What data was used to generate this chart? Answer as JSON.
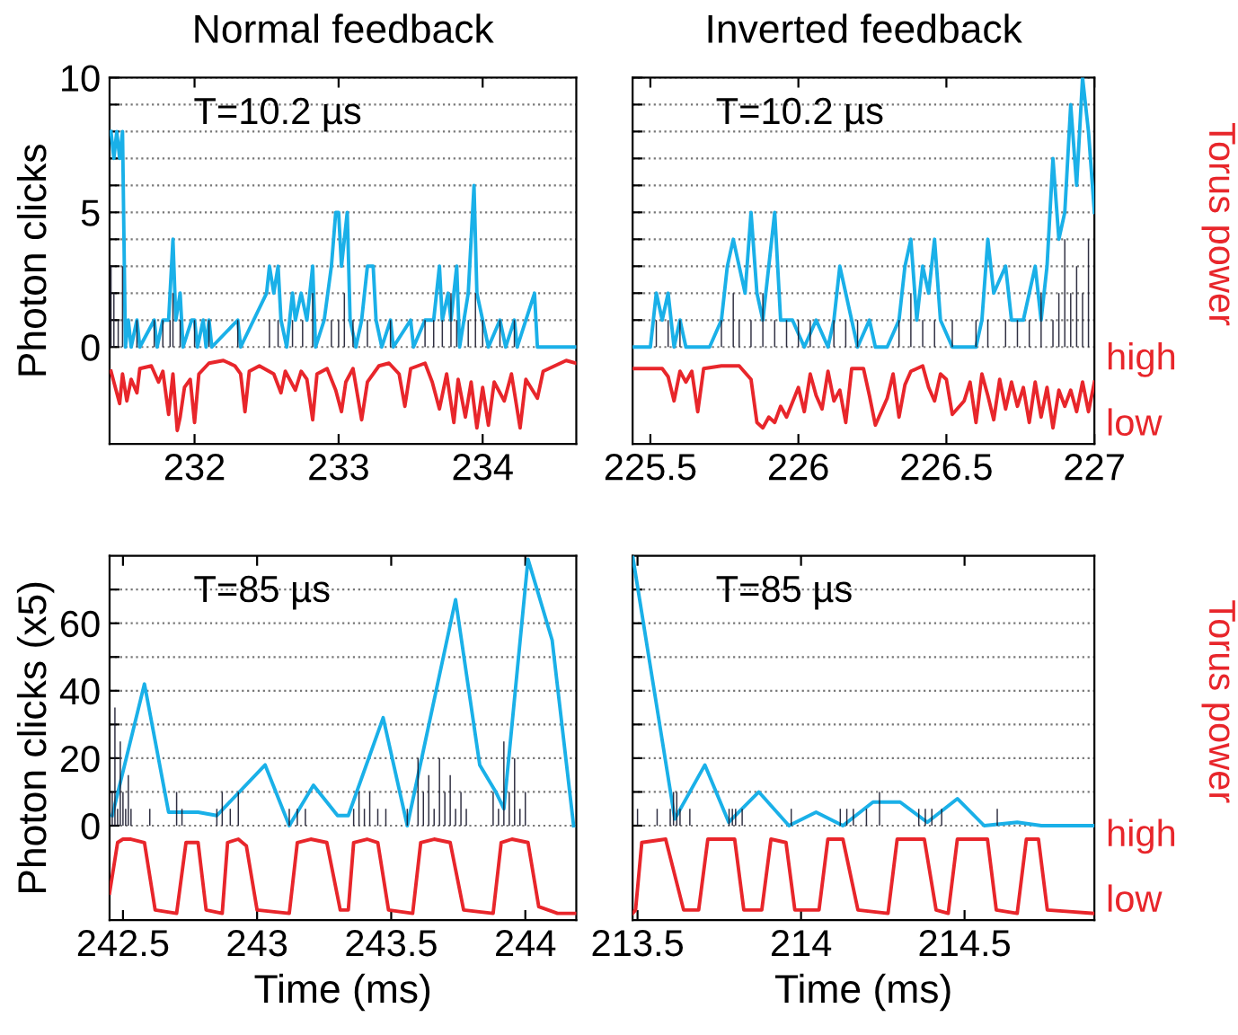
{
  "chart_data": [
    {
      "type": "line",
      "title": "Normal feedback",
      "ylabel": "Photon clicks",
      "annotations": [
        "T=10.2 µs"
      ],
      "xlim": [
        231.41,
        234.65
      ],
      "ylim": [
        -3.6,
        10
      ],
      "xticks": [
        232,
        233,
        234
      ],
      "yticks": [
        0,
        {
          "value": 1,
          "label": null
        },
        {
          "value": 2,
          "label": null
        },
        {
          "value": 3,
          "label": null
        },
        {
          "value": 4,
          "label": null
        },
        5,
        {
          "value": 6,
          "label": null
        },
        {
          "value": 7,
          "label": null
        },
        {
          "value": 8,
          "label": null
        },
        {
          "value": 9,
          "label": null
        },
        10
      ],
      "grid": "y",
      "series": [
        {
          "type": "bar",
          "color": "#1a1a2e",
          "x": [
            231.42,
            231.44,
            231.47,
            231.5,
            231.6,
            231.72,
            231.78,
            231.83,
            231.85,
            231.9,
            232.0,
            232.1,
            232.3,
            232.52,
            232.58,
            232.68,
            232.75,
            232.82,
            232.95,
            233.0,
            233.04,
            233.1,
            233.2,
            233.36,
            233.6,
            233.66,
            233.72,
            233.78,
            233.82,
            233.9,
            233.95,
            234.0,
            234.12,
            234.22
          ],
          "values": [
            3,
            2,
            1,
            3,
            1,
            1,
            1,
            1,
            2,
            1,
            1,
            1,
            1,
            1,
            1,
            1,
            1,
            2,
            1,
            1,
            2,
            1,
            1,
            1,
            1,
            1,
            1,
            2,
            1,
            1,
            2,
            1,
            1,
            1
          ]
        },
        {
          "type": "line",
          "color": "#1ab0e8",
          "x": [
            231.42,
            231.44,
            231.46,
            231.48,
            231.5,
            231.52,
            231.54,
            231.56,
            231.6,
            231.62,
            231.72,
            231.74,
            231.78,
            231.82,
            231.85,
            231.87,
            231.9,
            231.92,
            231.98,
            232.0,
            232.02,
            232.06,
            232.08,
            232.1,
            232.12,
            232.3,
            232.32,
            232.5,
            232.52,
            232.55,
            232.58,
            232.6,
            232.64,
            232.68,
            232.7,
            232.74,
            232.78,
            232.82,
            232.84,
            232.9,
            232.95,
            232.98,
            233.0,
            233.02,
            233.06,
            233.08,
            233.12,
            233.16,
            233.2,
            233.24,
            233.26,
            233.3,
            233.36,
            233.38,
            233.5,
            233.52,
            233.6,
            233.66,
            233.7,
            233.72,
            233.76,
            233.78,
            233.82,
            233.84,
            233.9,
            233.94,
            233.96,
            234.0,
            234.04,
            234.12,
            234.16,
            234.22,
            234.24,
            234.36,
            234.38,
            234.65
          ],
          "values": [
            8,
            7,
            8,
            7,
            8,
            0,
            1,
            0,
            1,
            0,
            1,
            0,
            1,
            1,
            4,
            1,
            2,
            0,
            1,
            1,
            0,
            1,
            0,
            1,
            0,
            1,
            0,
            2,
            3,
            2,
            3,
            1,
            0,
            2,
            1,
            2,
            1,
            3,
            0,
            1,
            3,
            5,
            5,
            3,
            5,
            1,
            0,
            1,
            3,
            3,
            1,
            0,
            1,
            0,
            1,
            0,
            1,
            1,
            3,
            1,
            2,
            1,
            3,
            0,
            2,
            6,
            2,
            1,
            0,
            1,
            0,
            1,
            0,
            2,
            0,
            0
          ]
        },
        {
          "type": "line",
          "color": "#e8262b",
          "x": [
            231.42,
            231.45,
            231.48,
            231.5,
            231.53,
            231.56,
            231.6,
            231.62,
            231.7,
            231.75,
            231.78,
            231.82,
            231.85,
            231.88,
            231.9,
            231.93,
            231.97,
            232.0,
            232.03,
            232.1,
            232.2,
            232.28,
            232.32,
            232.35,
            232.38,
            232.45,
            232.55,
            232.6,
            232.63,
            232.7,
            232.74,
            232.78,
            232.82,
            232.85,
            232.92,
            232.98,
            233.02,
            233.05,
            233.1,
            233.16,
            233.2,
            233.28,
            233.35,
            233.42,
            233.46,
            233.5,
            233.6,
            233.65,
            233.7,
            233.75,
            233.8,
            233.83,
            233.88,
            233.92,
            233.96,
            234.0,
            234.04,
            234.08,
            234.15,
            234.2,
            234.26,
            234.3,
            234.38,
            234.42,
            234.5,
            234.58,
            234.65
          ],
          "values": [
            -0.9,
            -1.5,
            -2.1,
            -1.0,
            -2.0,
            -1.2,
            -1.7,
            -0.8,
            -0.7,
            -1.3,
            -0.9,
            -2.5,
            -1.0,
            -3.1,
            -2.6,
            -1.5,
            -1.2,
            -2.8,
            -1.0,
            -0.6,
            -0.5,
            -0.7,
            -1.0,
            -2.4,
            -0.9,
            -0.7,
            -1.0,
            -1.7,
            -0.9,
            -1.6,
            -0.9,
            -1.2,
            -2.7,
            -1.0,
            -0.8,
            -1.6,
            -2.4,
            -1.3,
            -0.8,
            -2.7,
            -1.3,
            -0.7,
            -0.6,
            -1.0,
            -2.2,
            -0.8,
            -0.6,
            -1.3,
            -2.3,
            -1.0,
            -2.8,
            -1.2,
            -2.6,
            -1.3,
            -3.0,
            -1.5,
            -2.9,
            -1.3,
            -2.0,
            -1.0,
            -3.0,
            -1.2,
            -1.9,
            -0.9,
            -0.7,
            -0.5,
            -0.6
          ]
        }
      ]
    },
    {
      "type": "line",
      "title": "Inverted feedback",
      "y2label": "Torus power",
      "annotations": [
        "T=10.2 µs",
        "high",
        "low"
      ],
      "xlim": [
        225.44,
        227.0
      ],
      "ylim": [
        -3.6,
        10
      ],
      "xticks": [
        225.5,
        226,
        226.5,
        227
      ],
      "yticks": [
        0,
        {
          "value": 1,
          "label": null
        },
        {
          "value": 2,
          "label": null
        },
        {
          "value": 3,
          "label": null
        },
        {
          "value": 4,
          "label": null
        },
        5,
        {
          "value": 6,
          "label": null
        },
        {
          "value": 7,
          "label": null
        },
        {
          "value": 8,
          "label": null
        },
        {
          "value": 9,
          "label": null
        },
        10
      ],
      "grid": "y",
      "tick_labels": "x",
      "series": [
        {
          "type": "bar",
          "color": "#1a1a2e",
          "x": [
            225.52,
            225.56,
            225.6,
            225.74,
            225.78,
            225.8,
            225.84,
            225.88,
            225.92,
            225.96,
            226.0,
            226.04,
            226.12,
            226.16,
            226.2,
            226.34,
            226.38,
            226.42,
            226.46,
            226.52,
            226.6,
            226.64,
            226.7,
            226.74,
            226.78,
            226.82,
            226.86,
            226.88,
            226.9,
            226.92,
            226.94,
            226.96,
            226.98
          ],
          "values": [
            1,
            1,
            1,
            1,
            2,
            1,
            1,
            2,
            1,
            1,
            1,
            1,
            1,
            1,
            1,
            1,
            2,
            1,
            1,
            1,
            1,
            1,
            1,
            1,
            1,
            2,
            1,
            2,
            4,
            2,
            3,
            2,
            4
          ]
        },
        {
          "type": "line",
          "color": "#1ab0e8",
          "x": [
            225.44,
            225.5,
            225.52,
            225.54,
            225.56,
            225.58,
            225.6,
            225.62,
            225.7,
            225.74,
            225.76,
            225.78,
            225.8,
            225.82,
            225.84,
            225.86,
            225.88,
            225.9,
            225.92,
            225.94,
            225.98,
            226.02,
            226.06,
            226.1,
            226.12,
            226.14,
            226.16,
            226.18,
            226.2,
            226.24,
            226.26,
            226.3,
            226.34,
            226.36,
            226.38,
            226.4,
            226.42,
            226.44,
            226.46,
            226.48,
            226.52,
            226.6,
            226.62,
            226.64,
            226.66,
            226.7,
            226.72,
            226.76,
            226.8,
            226.82,
            226.84,
            226.86,
            226.88,
            226.9,
            226.92,
            226.94,
            226.96,
            226.98,
            227.0
          ],
          "values": [
            0,
            0,
            2,
            1,
            2,
            0,
            1,
            0,
            0,
            1,
            3,
            4,
            3,
            2,
            5,
            2,
            1,
            3,
            5,
            1,
            1,
            0,
            1,
            0,
            1,
            3,
            2,
            1,
            0,
            1,
            0,
            0,
            1,
            3,
            4,
            1,
            3,
            2,
            4,
            1,
            0,
            0,
            1,
            4,
            2,
            3,
            1,
            1,
            3,
            1,
            3,
            7,
            4,
            5,
            9,
            6,
            10,
            8,
            5
          ]
        },
        {
          "color": "#e8262b",
          "x": [
            225.44,
            225.5,
            225.54,
            225.56,
            225.58,
            225.6,
            225.62,
            225.64,
            225.66,
            225.68,
            225.74,
            225.8,
            225.84,
            225.86,
            225.88,
            225.9,
            225.92,
            225.94,
            225.96,
            226.0,
            226.02,
            226.04,
            226.06,
            226.08,
            226.1,
            226.12,
            226.14,
            226.16,
            226.18,
            226.22,
            226.24,
            226.26,
            226.3,
            226.32,
            226.34,
            226.36,
            226.38,
            226.42,
            226.44,
            226.46,
            226.48,
            226.5,
            226.52,
            226.56,
            226.58,
            226.6,
            226.62,
            226.64,
            226.66,
            226.68,
            226.7,
            226.72,
            226.74,
            226.76,
            226.78,
            226.8,
            226.82,
            226.84,
            226.86,
            226.88,
            226.9,
            226.92,
            226.94,
            226.96,
            226.98,
            227.0
          ],
          "values": [
            -0.8,
            -0.8,
            -0.8,
            -1.1,
            -2.0,
            -0.9,
            -1.3,
            -0.9,
            -2.4,
            -0.8,
            -0.7,
            -0.7,
            -1.2,
            -2.8,
            -3.0,
            -2.6,
            -2.8,
            -2.2,
            -2.6,
            -1.5,
            -2.4,
            -1.0,
            -1.8,
            -2.3,
            -0.9,
            -2.0,
            -1.6,
            -2.8,
            -0.8,
            -0.8,
            -1.8,
            -2.9,
            -1.9,
            -1.0,
            -2.6,
            -1.4,
            -0.9,
            -0.7,
            -1.5,
            -2.0,
            -1.0,
            -1.2,
            -2.5,
            -2.0,
            -1.3,
            -2.8,
            -1.0,
            -1.8,
            -2.7,
            -1.2,
            -2.3,
            -1.3,
            -2.2,
            -1.5,
            -2.8,
            -1.3,
            -2.6,
            -1.5,
            -3.0,
            -1.6,
            -2.2,
            -1.6,
            -2.4,
            -1.3,
            -2.4,
            -1.3
          ]
        }
      ]
    },
    {
      "type": "line",
      "ylabel": "Photon clicks (x5)",
      "xlabel": "Time (ms)",
      "annotations": [
        "T=85 µs"
      ],
      "xlim": [
        242.45,
        244.19
      ],
      "ylim": [
        -28,
        80
      ],
      "xticks": [
        242.5,
        243,
        243.5,
        244
      ],
      "yticks": [
        0,
        {
          "value": 10,
          "label": null
        },
        20,
        {
          "value": 30,
          "label": null
        },
        40,
        {
          "value": 50,
          "label": null
        },
        60,
        {
          "value": 70,
          "label": null
        }
      ],
      "grid": "y",
      "series": [
        {
          "type": "bar",
          "color": "#1a1a2e",
          "x": [
            242.46,
            242.47,
            242.48,
            242.49,
            242.5,
            242.51,
            242.52,
            242.53,
            242.6,
            242.7,
            242.72,
            242.85,
            242.87,
            242.9,
            242.93,
            243.12,
            243.15,
            243.18,
            243.36,
            243.38,
            243.4,
            243.42,
            243.45,
            243.48,
            243.56,
            243.6,
            243.62,
            243.64,
            243.66,
            243.68,
            243.7,
            243.72,
            243.74,
            243.76,
            243.78,
            243.88,
            243.9,
            243.92,
            243.94,
            243.96,
            243.98,
            244.0
          ],
          "values": [
            10,
            35,
            5,
            25,
            10,
            5,
            15,
            5,
            5,
            10,
            5,
            5,
            10,
            5,
            10,
            5,
            5,
            5,
            5,
            10,
            5,
            10,
            5,
            5,
            5,
            20,
            10,
            15,
            5,
            20,
            10,
            15,
            5,
            10,
            5,
            10,
            5,
            25,
            10,
            20,
            5,
            10
          ]
        },
        {
          "type": "line",
          "color": "#1ab0e8",
          "x": [
            242.46,
            242.58,
            242.67,
            242.78,
            242.85,
            243.03,
            243.12,
            243.21,
            243.3,
            243.34,
            243.47,
            243.56,
            243.74,
            243.83,
            243.89,
            243.92,
            244.01,
            244.1,
            244.18
          ],
          "values": [
            3,
            42,
            4,
            4,
            3,
            18,
            0,
            12,
            3,
            3,
            32,
            0,
            67,
            18,
            10,
            5,
            79,
            55,
            0
          ]
        },
        {
          "type": "line",
          "color": "#e8262b",
          "x": [
            242.45,
            242.48,
            242.5,
            242.53,
            242.58,
            242.62,
            242.7,
            242.735,
            242.78,
            242.81,
            242.87,
            242.89,
            242.93,
            242.96,
            243.0,
            243.12,
            243.15,
            243.2,
            243.26,
            243.31,
            243.34,
            243.36,
            243.41,
            243.45,
            243.49,
            243.58,
            243.61,
            243.66,
            243.72,
            243.77,
            243.88,
            243.91,
            243.95,
            244.01,
            244.05,
            244.12,
            244.19
          ],
          "values": [
            -20,
            -5,
            -4,
            -4,
            -5,
            -25,
            -26,
            -5,
            -5,
            -25,
            -26,
            -5,
            -4,
            -6,
            -25,
            -26,
            -5,
            -4,
            -5,
            -25,
            -25,
            -5,
            -4,
            -5,
            -25,
            -26,
            -5,
            -4,
            -5,
            -25,
            -26,
            -5,
            -4,
            -5,
            -24,
            -26,
            -26
          ]
        }
      ]
    },
    {
      "type": "line",
      "xlabel": "Time (ms)",
      "y2label": "Torus power",
      "annotations": [
        "T=85 µs",
        "high",
        "low"
      ],
      "xlim": [
        213.485,
        214.897
      ],
      "ylim": [
        -28,
        80
      ],
      "xticks": [
        213.5,
        214,
        214.5
      ],
      "yticks": [
        0,
        {
          "value": 10,
          "label": null
        },
        20,
        {
          "value": 30,
          "label": null
        },
        40,
        {
          "value": 50,
          "label": null
        },
        60,
        {
          "value": 70,
          "label": null
        }
      ],
      "grid": "y",
      "tick_labels": "x",
      "series": [
        {
          "type": "bar",
          "color": "#1a1a2e",
          "x": [
            213.5,
            213.56,
            213.6,
            213.61,
            213.62,
            213.63,
            213.66,
            213.78,
            213.79,
            213.8,
            213.82,
            213.97,
            214.12,
            214.14,
            214.16,
            214.2,
            214.24,
            214.36,
            214.38,
            214.4,
            214.43,
            214.6
          ],
          "values": [
            5,
            5,
            5,
            10,
            10,
            5,
            5,
            5,
            5,
            5,
            5,
            5,
            5,
            5,
            5,
            5,
            10,
            5,
            5,
            5,
            5,
            5
          ]
        },
        {
          "type": "line",
          "color": "#1ab0e8",
          "x": [
            213.485,
            213.614,
            213.706,
            213.779,
            213.871,
            213.963,
            214.046,
            214.128,
            214.22,
            214.303,
            214.386,
            214.478,
            214.56,
            214.661,
            214.735,
            214.897
          ],
          "values": [
            80,
            2,
            18,
            1,
            10,
            0,
            4,
            0,
            7,
            7,
            1,
            8,
            0,
            1,
            0,
            0
          ]
        },
        {
          "color": "#e8262b",
          "x": [
            213.485,
            213.494,
            213.513,
            213.586,
            213.641,
            213.687,
            213.715,
            213.797,
            213.825,
            213.88,
            213.908,
            213.954,
            213.981,
            214.055,
            214.082,
            214.128,
            214.174,
            214.266,
            214.294,
            214.377,
            214.413,
            214.45,
            214.478,
            214.57,
            214.597,
            214.661,
            214.689,
            214.726,
            214.753,
            214.897
          ],
          "values": [
            -26,
            -25,
            -5,
            -4,
            -25,
            -25,
            -4,
            -4,
            -25,
            -25,
            -4,
            -5,
            -25,
            -25,
            -4,
            -4,
            -25,
            -26,
            -4,
            -4,
            -25,
            -26,
            -4,
            -4,
            -25,
            -26,
            -4,
            -4,
            -25,
            -26
          ]
        }
      ]
    }
  ]
}
